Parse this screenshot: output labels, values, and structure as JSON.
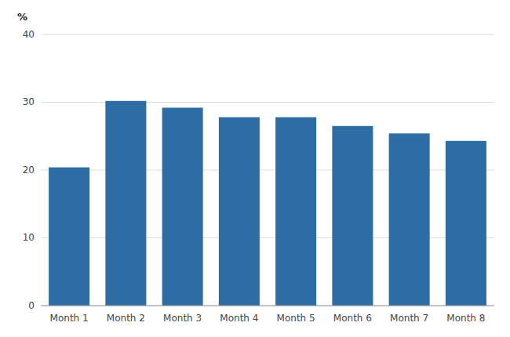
{
  "chart_data": {
    "type": "bar",
    "categories": [
      "Month 1",
      "Month 2",
      "Month 3",
      "Month 4",
      "Month 5",
      "Month 6",
      "Month 7",
      "Month 8"
    ],
    "values": [
      20.4,
      30.2,
      29.2,
      27.8,
      27.8,
      26.5,
      25.4,
      24.3
    ],
    "color": "#2E6DA4",
    "ylabel": "%",
    "ylim": [
      0,
      40
    ],
    "yticks": [
      0,
      10,
      20,
      30,
      40
    ],
    "grid": true
  }
}
